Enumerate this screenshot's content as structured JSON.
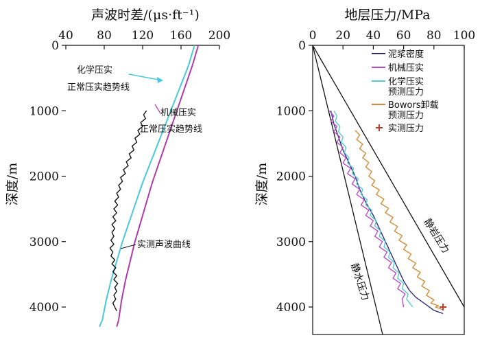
{
  "chart_data": [
    {
      "type": "line",
      "title": "声波时差/(μs·ft⁻¹)",
      "ylabel": "深度/m",
      "xlim": [
        40,
        200
      ],
      "ylim": [
        0,
        4300
      ],
      "x_ticks": [
        "40",
        "80",
        "120",
        "160",
        "200"
      ],
      "y_ticks": [
        "0",
        "1000",
        "2000",
        "3000",
        "4000"
      ],
      "series": [
        {
          "color": "#48C8D8",
          "x": [
            174,
            168,
            160,
            152,
            144,
            136,
            128,
            120,
            113,
            106,
            99,
            93,
            87,
            82,
            78,
            75
          ],
          "y": [
            0,
            300,
            600,
            900,
            1200,
            1500,
            1800,
            2100,
            2400,
            2700,
            3000,
            3300,
            3600,
            3900,
            4200,
            4300
          ]
        },
        {
          "color": "#B03AA8",
          "x": [
            178,
            172,
            165,
            158,
            151,
            144,
            137,
            130,
            124,
            118,
            112,
            107,
            102,
            98,
            95,
            93
          ],
          "y": [
            0,
            300,
            600,
            900,
            1200,
            1500,
            1800,
            2100,
            2400,
            2700,
            3000,
            3300,
            3600,
            3900,
            4200,
            4300
          ]
        },
        {
          "color": "#111111",
          "x": [
            124,
            121,
            123,
            118,
            120,
            115,
            117,
            112,
            114,
            109,
            111,
            106,
            108,
            103,
            105,
            100,
            102,
            97,
            99,
            95,
            97,
            93,
            95,
            91,
            94,
            90,
            93,
            89,
            92,
            88,
            91,
            88,
            90,
            87,
            90,
            86,
            89,
            87,
            91,
            88,
            92,
            89,
            93,
            90,
            94,
            91,
            93,
            90,
            92,
            89,
            91,
            93
          ],
          "y": [
            1000,
            1060,
            1120,
            1180,
            1240,
            1300,
            1360,
            1420,
            1480,
            1540,
            1600,
            1660,
            1720,
            1780,
            1840,
            1900,
            1960,
            2020,
            2080,
            2140,
            2200,
            2260,
            2320,
            2380,
            2440,
            2500,
            2560,
            2620,
            2680,
            2740,
            2800,
            2860,
            2920,
            2980,
            3040,
            3100,
            3160,
            3220,
            3280,
            3340,
            3400,
            3460,
            3520,
            3580,
            3640,
            3700,
            3760,
            3820,
            3880,
            3940,
            4000,
            4060
          ]
        }
      ],
      "annotations": [
        "化学压实",
        "正常压实趋势线",
        "机械压实",
        "正常压实趋势线",
        "实测声波曲线"
      ]
    },
    {
      "type": "line",
      "title": "地层压力/MPa",
      "ylabel": "深度/m",
      "xlim": [
        0,
        100
      ],
      "ylim": [
        0,
        4300
      ],
      "x_ticks": [
        "0",
        "20",
        "40",
        "60",
        "80",
        "100"
      ],
      "y_ticks": [
        "0",
        "1000",
        "2000",
        "3000",
        "4000"
      ],
      "series": [
        {
          "name": "泥浆密度",
          "color": "#2E2A78",
          "x": [
            12,
            14,
            17,
            20,
            24,
            28,
            31,
            35,
            40,
            44,
            48,
            52,
            56,
            60,
            64,
            68,
            74,
            80,
            86
          ],
          "y": [
            1000,
            1200,
            1400,
            1600,
            1800,
            2000,
            2200,
            2400,
            2600,
            2800,
            3000,
            3200,
            3400,
            3600,
            3750,
            3850,
            3950,
            4050,
            4100
          ]
        },
        {
          "name": "机械压实",
          "color": "#B64CC8",
          "x": [
            11,
            14,
            12,
            16,
            14,
            18,
            16,
            20,
            18,
            22,
            20,
            25,
            23,
            28,
            26,
            31,
            29,
            34,
            32,
            37,
            35,
            40,
            38,
            43,
            41,
            46,
            44,
            49,
            47,
            52,
            50,
            55,
            53,
            58,
            56,
            61,
            59,
            60
          ],
          "y": [
            1000,
            1080,
            1160,
            1240,
            1320,
            1400,
            1480,
            1560,
            1640,
            1720,
            1800,
            1880,
            1960,
            2040,
            2120,
            2200,
            2280,
            2360,
            2440,
            2520,
            2600,
            2680,
            2760,
            2840,
            2920,
            3000,
            3080,
            3160,
            3240,
            3320,
            3400,
            3480,
            3560,
            3640,
            3720,
            3800,
            3880,
            4000
          ]
        },
        {
          "name": "化学压实\n预测压力",
          "color": "#56C9D7",
          "x": [
            14,
            16,
            15,
            18,
            17,
            20,
            19,
            22,
            21,
            24,
            23,
            27,
            26,
            30,
            29,
            33,
            32,
            36,
            35,
            39,
            38,
            42,
            41,
            45,
            44,
            48,
            47,
            51,
            50,
            54,
            53,
            57,
            56,
            60,
            59,
            63,
            62,
            66
          ],
          "y": [
            1000,
            1080,
            1160,
            1240,
            1320,
            1400,
            1480,
            1560,
            1640,
            1720,
            1800,
            1880,
            1960,
            2040,
            2120,
            2200,
            2280,
            2360,
            2440,
            2520,
            2600,
            2680,
            2760,
            2840,
            2920,
            3000,
            3080,
            3160,
            3240,
            3320,
            3400,
            3480,
            3560,
            3640,
            3720,
            3800,
            3880,
            4000
          ]
        },
        {
          "name": "Bowors卸载\n预测压力",
          "color": "#D18A35",
          "x": [
            28,
            31,
            29,
            33,
            31,
            35,
            33,
            37,
            35,
            39,
            37,
            41,
            39,
            44,
            42,
            47,
            45,
            50,
            48,
            53,
            51,
            56,
            54,
            59,
            57,
            62,
            60,
            65,
            63,
            68,
            66,
            71,
            69,
            74,
            72,
            77,
            75,
            80,
            78,
            83,
            81,
            86
          ],
          "y": [
            1300,
            1370,
            1440,
            1510,
            1580,
            1650,
            1720,
            1790,
            1860,
            1930,
            2000,
            2070,
            2140,
            2210,
            2280,
            2350,
            2420,
            2490,
            2560,
            2630,
            2700,
            2770,
            2840,
            2910,
            2980,
            3050,
            3120,
            3190,
            3260,
            3330,
            3400,
            3470,
            3540,
            3610,
            3680,
            3750,
            3820,
            3890,
            3940,
            3980,
            4000,
            4040
          ]
        },
        {
          "name": "实测压力",
          "color": "#C0392B",
          "x": [
            86
          ],
          "y": [
            4000
          ]
        }
      ],
      "annotations": [
        "静水压力",
        "静岩压力"
      ]
    }
  ]
}
